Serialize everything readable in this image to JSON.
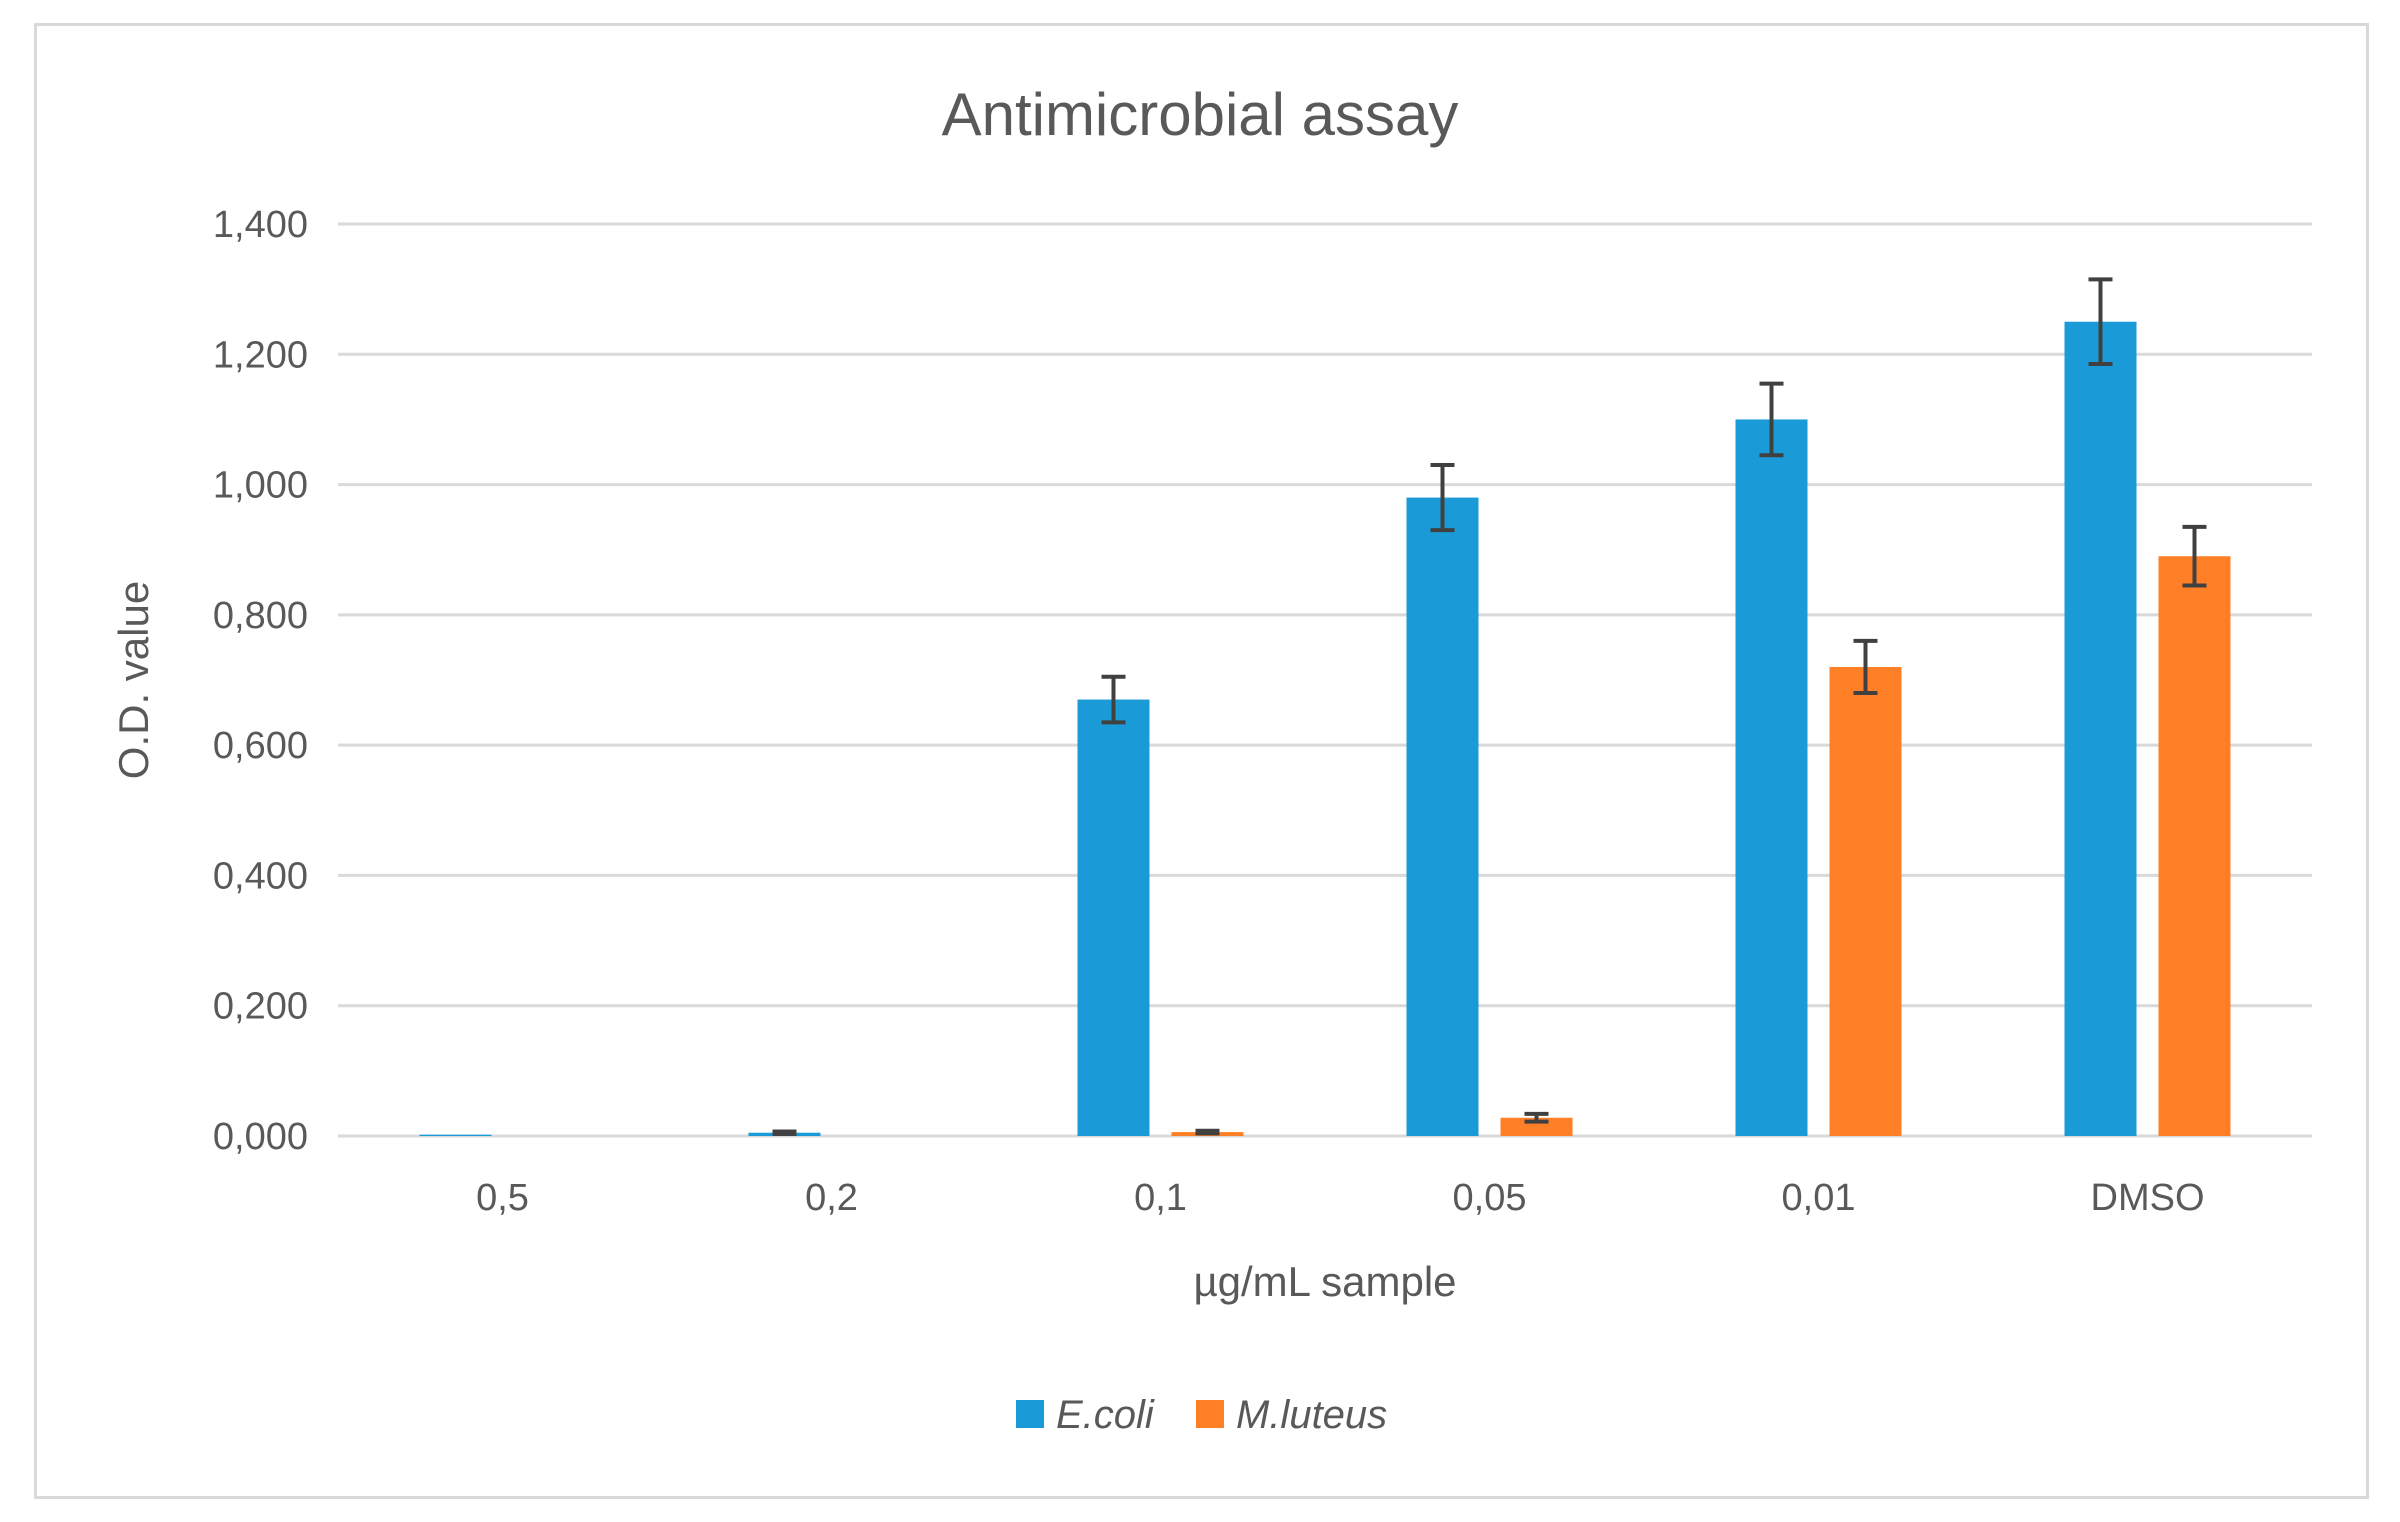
{
  "chart_data": {
    "type": "bar",
    "title": "Antimicrobial assay",
    "xlabel": "µg/mL sample",
    "ylabel": "O.D. value",
    "categories": [
      "0,5",
      "0,2",
      "0,1",
      "0,05",
      "0,01",
      "DMSO"
    ],
    "ylim": [
      0,
      1.4
    ],
    "yticks": [
      0,
      0.2,
      0.4,
      0.6,
      0.8,
      1.0,
      1.2,
      1.4
    ],
    "ytick_labels": [
      "0,000",
      "0,200",
      "0,400",
      "0,600",
      "0,800",
      "1,000",
      "1,200",
      "1,400"
    ],
    "grid": true,
    "legend_position": "bottom",
    "series": [
      {
        "name": "E.coli",
        "color": "#1a9bd7",
        "values": [
          0.002,
          0.005,
          0.67,
          0.98,
          1.1,
          1.25
        ],
        "errors": [
          0.0,
          0.002,
          0.035,
          0.05,
          0.055,
          0.065
        ]
      },
      {
        "name": "M.luteus",
        "color": "#ff7f27",
        "values": [
          0.0,
          0.0,
          0.006,
          0.028,
          0.72,
          0.89
        ],
        "errors": [
          0.0,
          0.0,
          0.002,
          0.006,
          0.04,
          0.045
        ]
      }
    ]
  }
}
